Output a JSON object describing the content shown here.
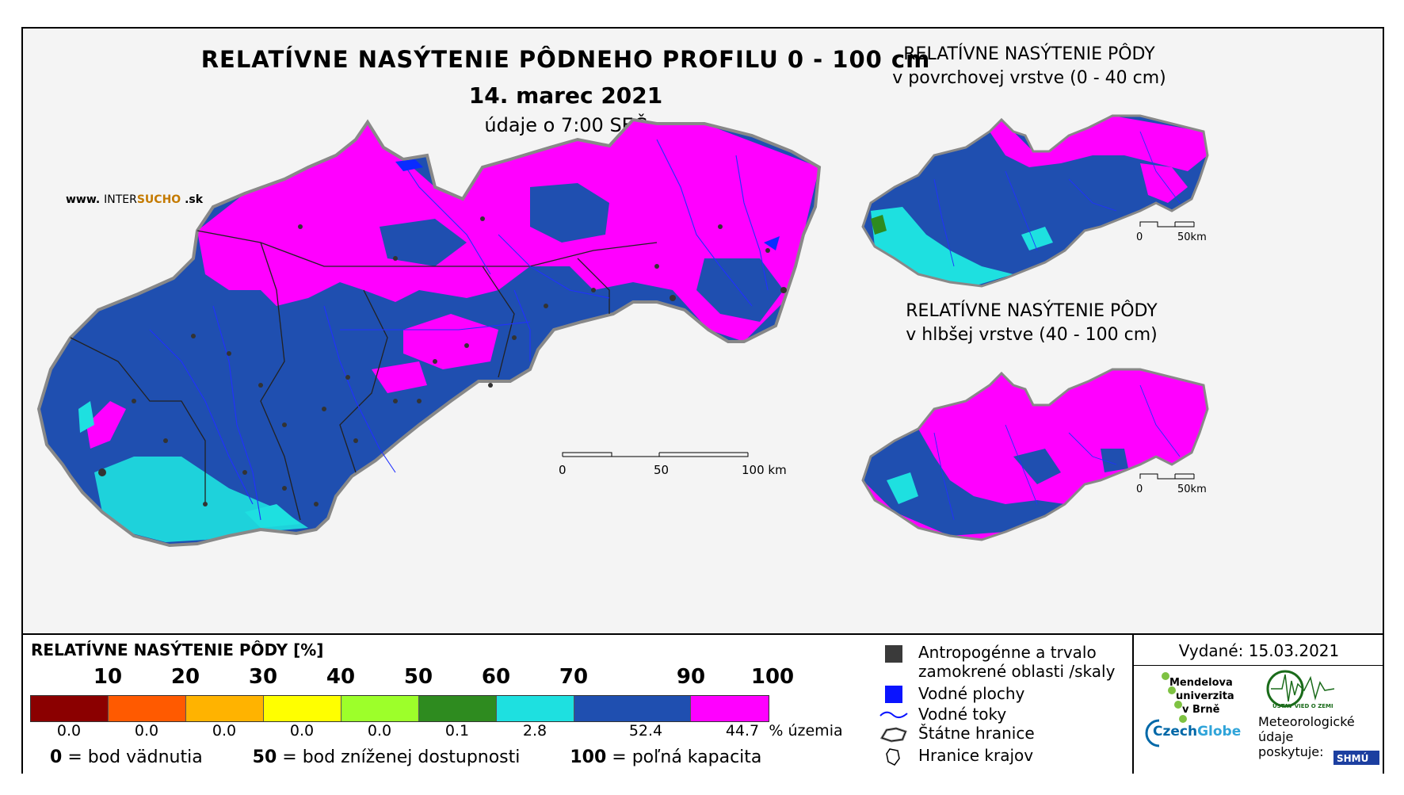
{
  "title": "RELATÍVNE NASÝTENIE PÔDNEHO PROFILU 0 - 100 cm",
  "date": "14. marec 2021",
  "time_note": "údaje o 7:00 SEČ",
  "watermark": {
    "prefix": "www.",
    "brand_a": "INTER",
    "brand_b": "SUCHO",
    "suffix": ".sk"
  },
  "main_scale": {
    "labels": [
      "0",
      "50",
      "100 km"
    ]
  },
  "inset_top": {
    "title_line1": "RELATÍVNE NASÝTENIE PÔDY",
    "title_line2": "v povrchovej vrstve (0 - 40 cm)",
    "scale_labels": [
      "0",
      "50km"
    ]
  },
  "inset_bottom": {
    "title_line1": "RELATÍVNE NASÝTENIE PÔDY",
    "title_line2": "v hlbšej vrstve (40 - 100 cm)",
    "scale_labels": [
      "0",
      "50km"
    ]
  },
  "legend": {
    "title": "RELATÍVNE NASÝTENIE PÔDY [%]",
    "ticks": [
      "10",
      "20",
      "30",
      "40",
      "50",
      "60",
      "70",
      "90",
      "100"
    ],
    "colors": [
      "#8b0000",
      "#ff5a00",
      "#ffb300",
      "#ffff00",
      "#9dff2a",
      "#2e8b1f",
      "#1ee0e0",
      "#1f4fb0",
      "#ff00ff"
    ],
    "percentages": [
      "0.0",
      "0.0",
      "0.0",
      "0.0",
      "0.0",
      "0.1",
      "2.8",
      "52.4",
      "44.7"
    ],
    "pct_unit": "% územia",
    "footnote": [
      {
        "value": "0",
        "text": "= bod vädnutia"
      },
      {
        "value": "50",
        "text": "= bod zníženej dostupnosti"
      },
      {
        "value": "100",
        "text": "= poľná kapacita"
      }
    ]
  },
  "symbols": {
    "anthropogenic_line1": "Antropogénne a trvalo",
    "anthropogenic_line2": "zamokrené oblasti /skaly",
    "water_areas": "Vodné plochy",
    "water_streams": "Vodné toky",
    "state_border": "Štátne hranice",
    "region_border": "Hranice krajov"
  },
  "issued": "Vydané: 15.03.2021",
  "partners": {
    "mendel": [
      "Mendelova",
      "univerzita",
      "v Brně"
    ],
    "czechglobe_a": "Czech",
    "czechglobe_b": "Globe",
    "ustav": "ÚSTAV VIED O ZEMI",
    "meteo": [
      "Meteorologické",
      "údaje",
      "poskytuje:"
    ],
    "shmu": "SHMÚ"
  }
}
